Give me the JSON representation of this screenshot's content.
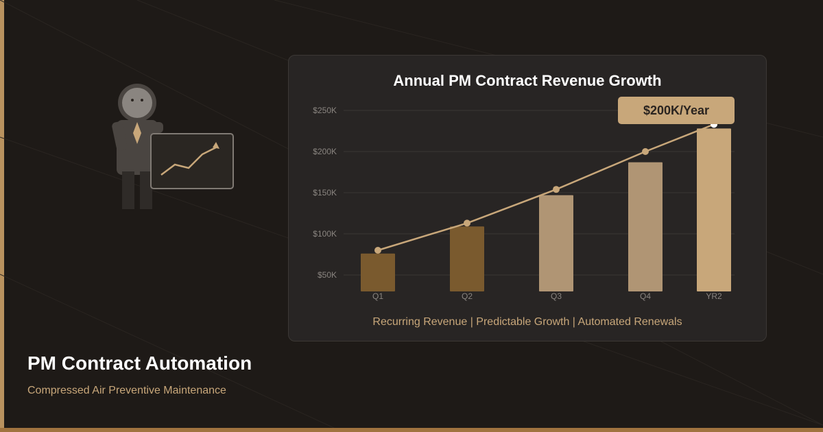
{
  "headline": "PM Contract Automation",
  "subheadline": "Compressed Air Preventive Maintenance",
  "card": {
    "badge": "$200K/Year",
    "caption": "Recurring Revenue | Predictable Growth | Automated Renewals"
  },
  "colors": {
    "background": "#1e1a17",
    "accent": "#c8a77a",
    "bar_dark": "#7a5a2e",
    "bar_mid": "#b09574",
    "bar_light": "#c8a77a"
  },
  "icons": {
    "presenter": "businessperson-presenting-icon",
    "trend": "upward-trend-chart-icon"
  },
  "chart_data": {
    "type": "bar",
    "title": "Annual PM Contract Revenue Growth",
    "categories": [
      "Q1",
      "Q2",
      "Q3",
      "Q4",
      "YR2"
    ],
    "y_tick_labels": [
      "$50K",
      "$100K",
      "$150K",
      "$200K",
      "$250K"
    ],
    "y_ticks": [
      50,
      100,
      150,
      200,
      250
    ],
    "ylim": [
      30,
      250
    ],
    "unit": "$K",
    "series": [
      {
        "type": "bar",
        "values": [
          76,
          109,
          147,
          187,
          228
        ]
      },
      {
        "type": "line",
        "values": [
          80,
          113,
          154,
          200,
          233
        ]
      }
    ],
    "grid": true,
    "legend": "none"
  }
}
